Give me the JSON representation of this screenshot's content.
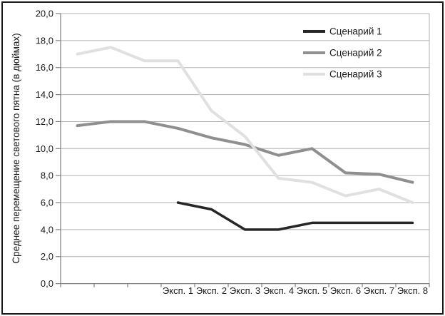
{
  "frame": {
    "border_color": "#1a1a1a",
    "background_color": "#ffffff"
  },
  "colors": {
    "gridline": "#b0b0b0",
    "axis": "#808080",
    "text": "#1a1a1a"
  },
  "chart_data": {
    "type": "line",
    "title": "",
    "xlabel": "",
    "ylabel": "Среднее перемещение светового пятна (в дюймах)",
    "ylim": [
      0,
      20
    ],
    "ytick_step": 2,
    "ytick_decimal_separator": ",",
    "ytick_labels": [
      "0,0",
      "2,0",
      "4,0",
      "6,0",
      "8,0",
      "10,0",
      "12,0",
      "14,0",
      "16,0",
      "18,0",
      "20,0"
    ],
    "grid": "horizontal",
    "n_categories": 11,
    "categories": [
      "",
      "",
      "",
      "Эксп. 1",
      "Эксп. 2",
      "Эксп. 3",
      "Эксп. 4",
      "Эксп. 5",
      "Эксп. 6",
      "Эксп. 7",
      "Эксп. 8"
    ],
    "legend_position": "top-right-inside",
    "series": [
      {
        "name": "Сценарий 1",
        "color": "#262626",
        "line_width": 3.5,
        "start_index": 3,
        "values": [
          6.0,
          5.5,
          4.0,
          4.0,
          4.5,
          4.5,
          4.5,
          4.5
        ]
      },
      {
        "name": "Сценарий 2",
        "color": "#8f8f8f",
        "line_width": 4,
        "start_index": 0,
        "values": [
          11.7,
          12.0,
          12.0,
          11.5,
          10.8,
          10.3,
          9.5,
          10.0,
          8.2,
          8.1,
          7.5
        ]
      },
      {
        "name": "Сценарий 3",
        "color": "#e0e0e0",
        "line_width": 4,
        "start_index": 0,
        "values": [
          17.0,
          17.5,
          16.5,
          16.5,
          12.8,
          10.9,
          7.8,
          7.5,
          6.5,
          7.0,
          6.0
        ]
      }
    ]
  }
}
